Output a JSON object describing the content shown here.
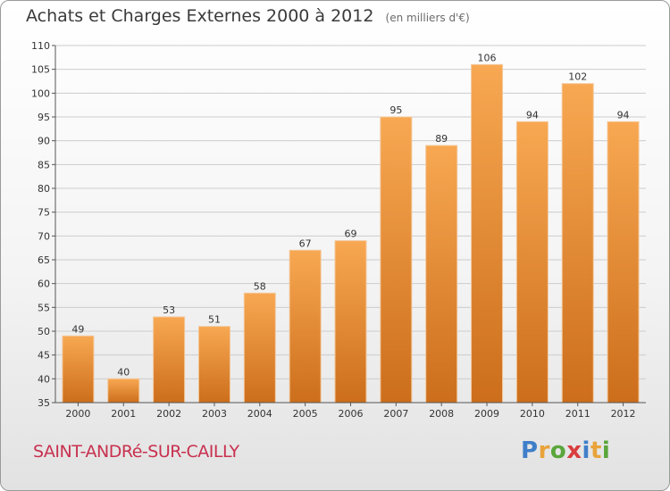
{
  "header": {
    "title": "Achats et Charges Externes 2000 à 2012",
    "subtitle": "(en milliers d'€)"
  },
  "footer": {
    "commune": "SAINT-ANDRé-SUR-CAILLY",
    "logo_letters": [
      "P",
      "r",
      "o",
      "x",
      "i",
      "t",
      "i"
    ],
    "logo_colors": [
      "#3f7fc9",
      "#e8a33a",
      "#5aa63c",
      "#d93d3d",
      "#3f7fc9",
      "#e8a33a",
      "#5aa63c"
    ]
  },
  "colors": {
    "bar_top": "#f8a852",
    "bar_bottom": "#cc6e1c",
    "bar_edge": "#f3c79a",
    "grid": "#cccccc",
    "axis": "#555555",
    "text": "#333333"
  },
  "chart_data": {
    "type": "bar",
    "title": "Achats et Charges Externes 2000 à 2012",
    "subtitle": "(en milliers d'€)",
    "categories": [
      "2000",
      "2001",
      "2002",
      "2003",
      "2004",
      "2005",
      "2006",
      "2007",
      "2008",
      "2009",
      "2010",
      "2011",
      "2012"
    ],
    "values": [
      49,
      40,
      53,
      51,
      58,
      67,
      69,
      95,
      89,
      106,
      94,
      102,
      94
    ],
    "ylim": [
      35,
      110
    ],
    "yticks": [
      35,
      40,
      45,
      50,
      55,
      60,
      65,
      70,
      75,
      80,
      85,
      90,
      95,
      100,
      105,
      110
    ],
    "grid": true,
    "data_labels": true
  }
}
